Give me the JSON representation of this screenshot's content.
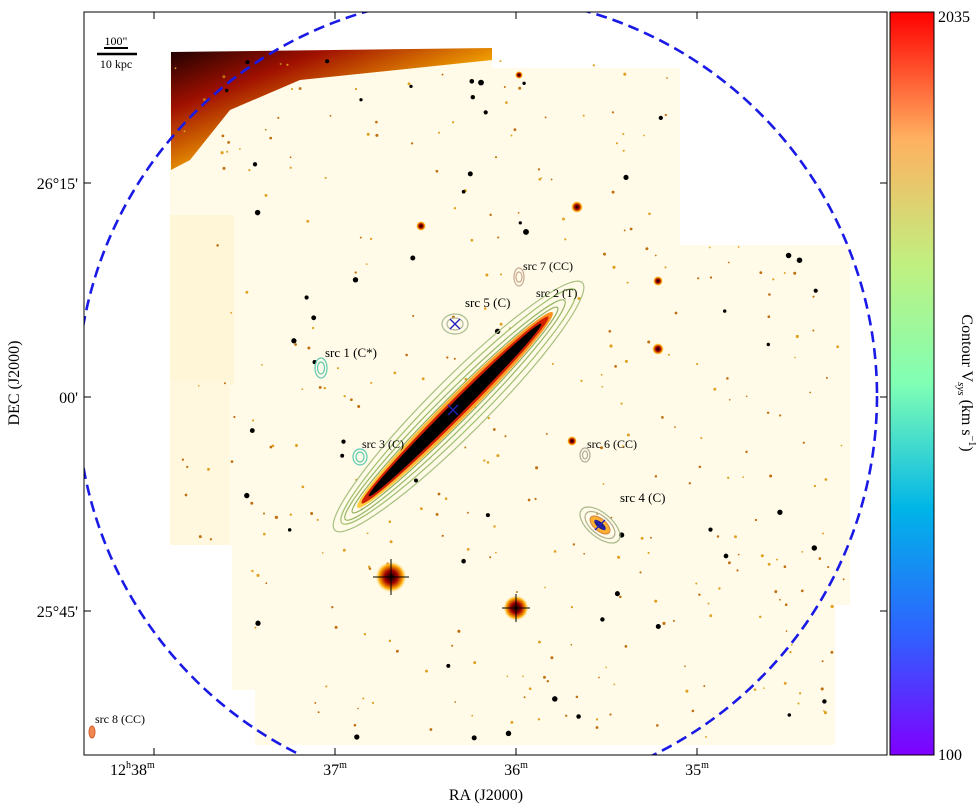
{
  "chart_data": {
    "type": "image",
    "xlabel": "RA (J2000)",
    "ylabel": "DEC (J2000)",
    "x_ticks": [
      {
        "label_main": "12",
        "sup_h": "h",
        "label_rest": "38",
        "sup_m": "m"
      },
      {
        "label_main": "37",
        "sup_m": "m"
      },
      {
        "label_main": "36",
        "sup_m": "m"
      },
      {
        "label_main": "35",
        "sup_m": "m"
      }
    ],
    "y_ticks": [
      "26°15'",
      "00'",
      "25°45'"
    ],
    "scale_bar": {
      "top": "100\"",
      "bottom": "10 kpc"
    },
    "colorbar": {
      "label": "Contour V",
      "label_sub": "sys",
      "label_unit": "(km s",
      "label_unit_sup": "−1",
      "label_close": ")",
      "min": 100,
      "max": 2035,
      "min_label": "100",
      "max_label": "2035"
    },
    "sources": [
      {
        "label": "src 1 (C*)",
        "velocity": 1300
      },
      {
        "label": "src 2 (T)",
        "velocity": 1100
      },
      {
        "label": "src 3 (C)",
        "velocity": 1300
      },
      {
        "label": "src 4 (C)",
        "velocity": 1700
      },
      {
        "label": "src 5 (C)",
        "velocity": 800
      },
      {
        "label": "src 6 (CC)",
        "velocity": 1500
      },
      {
        "label": "src 7 (CC)",
        "velocity": 1700
      },
      {
        "label": "src 8 (CC)",
        "velocity": 1800
      }
    ]
  }
}
